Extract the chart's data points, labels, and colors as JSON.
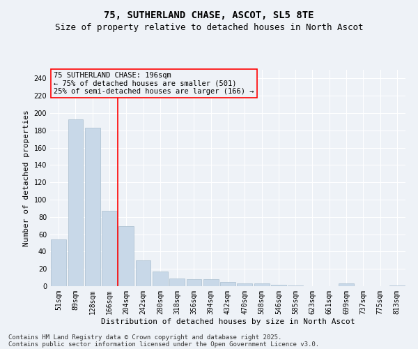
{
  "title1": "75, SUTHERLAND CHASE, ASCOT, SL5 8TE",
  "title2": "Size of property relative to detached houses in North Ascot",
  "xlabel": "Distribution of detached houses by size in North Ascot",
  "ylabel": "Number of detached properties",
  "categories": [
    "51sqm",
    "89sqm",
    "128sqm",
    "166sqm",
    "204sqm",
    "242sqm",
    "280sqm",
    "318sqm",
    "356sqm",
    "394sqm",
    "432sqm",
    "470sqm",
    "508sqm",
    "546sqm",
    "585sqm",
    "623sqm",
    "661sqm",
    "699sqm",
    "737sqm",
    "775sqm",
    "813sqm"
  ],
  "values": [
    54,
    193,
    183,
    87,
    69,
    30,
    17,
    9,
    8,
    8,
    5,
    3,
    3,
    2,
    1,
    0,
    0,
    3,
    0,
    0,
    1
  ],
  "bar_color": "#c8d8e8",
  "bar_edgecolor": "#a8bece",
  "vline_color": "red",
  "vline_index": 3.5,
  "annotation_line1": "75 SUTHERLAND CHASE: 196sqm",
  "annotation_line2": "← 75% of detached houses are smaller (501)",
  "annotation_line3": "25% of semi-detached houses are larger (166) →",
  "annotation_box_edgecolor": "red",
  "ylim": [
    0,
    250
  ],
  "yticks": [
    0,
    20,
    40,
    60,
    80,
    100,
    120,
    140,
    160,
    180,
    200,
    220,
    240
  ],
  "footer1": "Contains HM Land Registry data © Crown copyright and database right 2025.",
  "footer2": "Contains public sector information licensed under the Open Government Licence v3.0.",
  "bg_color": "#eef2f7",
  "grid_color": "#ffffff",
  "title1_fontsize": 10,
  "title2_fontsize": 9,
  "annotation_fontsize": 7.5,
  "axis_label_fontsize": 8,
  "tick_fontsize": 7,
  "footer_fontsize": 6.5
}
